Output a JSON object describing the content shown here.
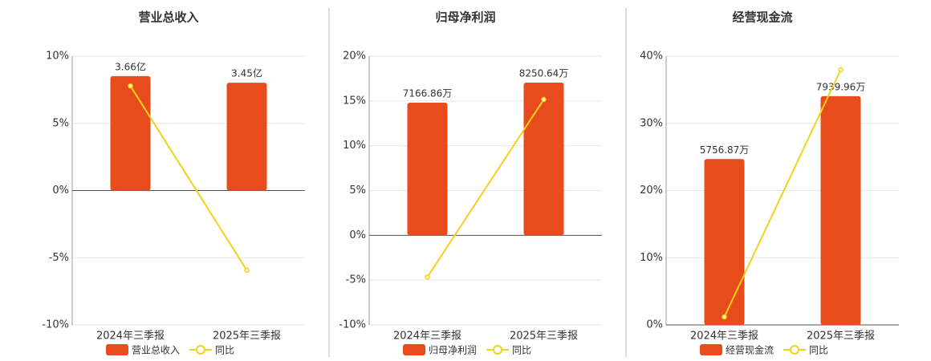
{
  "chart_data": [
    {
      "type": "bar",
      "title": "营业总收入",
      "categories": [
        "2024年三季报",
        "2025年三季报"
      ],
      "series": [
        {
          "name": "营业总收入",
          "color": "#e84c1c",
          "axis": "y2",
          "values": [
            3.66,
            3.45
          ],
          "value_labels": [
            "3.66亿",
            "3.45亿"
          ]
        },
        {
          "name": "同比",
          "type": "line",
          "color": "#f2d21a",
          "values": [
            7.78,
            -5.93
          ]
        }
      ],
      "ylim": [
        -10,
        10
      ],
      "yticks": [
        {
          "value": -10,
          "label": "-10%"
        },
        {
          "value": -5,
          "label": "-5%"
        },
        {
          "value": 0,
          "label": "0%"
        },
        {
          "value": 5,
          "label": "5%"
        },
        {
          "value": 10,
          "label": "10%"
        }
      ],
      "y2lim": [
        -4.3,
        4.3
      ],
      "grid": true
    },
    {
      "type": "bar",
      "title": "归母净利润",
      "categories": [
        "2024年三季报",
        "2025年三季报"
      ],
      "series": [
        {
          "name": "归母净利润",
          "color": "#e84c1c",
          "axis": "y2",
          "values": [
            7166.86,
            8250.64
          ],
          "value_labels": [
            "7166.86万",
            "8250.64万"
          ]
        },
        {
          "name": "同比",
          "type": "line",
          "color": "#f2d21a",
          "values": [
            -4.66,
            15.16
          ]
        }
      ],
      "ylim": [
        -10,
        20
      ],
      "yticks": [
        {
          "value": -10,
          "label": "-10%"
        },
        {
          "value": -5,
          "label": "-5%"
        },
        {
          "value": 0,
          "label": "0%"
        },
        {
          "value": 5,
          "label": "5%"
        },
        {
          "value": 10,
          "label": "10%"
        },
        {
          "value": 15,
          "label": "15%"
        },
        {
          "value": 20,
          "label": "20%"
        }
      ],
      "y2lim": [
        -4840,
        9680
      ],
      "grid": true
    },
    {
      "type": "bar",
      "title": "经营现金流",
      "categories": [
        "2024年三季报",
        "2025年三季报"
      ],
      "series": [
        {
          "name": "经营现金流",
          "color": "#e84c1c",
          "axis": "y2",
          "values": [
            5756.87,
            7939.96
          ],
          "value_labels": [
            "5756.87万",
            "7939.96万"
          ]
        },
        {
          "name": "同比",
          "type": "line",
          "color": "#f2d21a",
          "values": [
            1.19,
            37.97
          ]
        }
      ],
      "ylim": [
        0,
        40
      ],
      "yticks": [
        {
          "value": 0,
          "label": "0%"
        },
        {
          "value": 10,
          "label": "10%"
        },
        {
          "value": 20,
          "label": "20%"
        },
        {
          "value": 30,
          "label": "30%"
        },
        {
          "value": 40,
          "label": "40%"
        }
      ],
      "y2lim": [
        0,
        9330
      ],
      "grid": true
    }
  ]
}
